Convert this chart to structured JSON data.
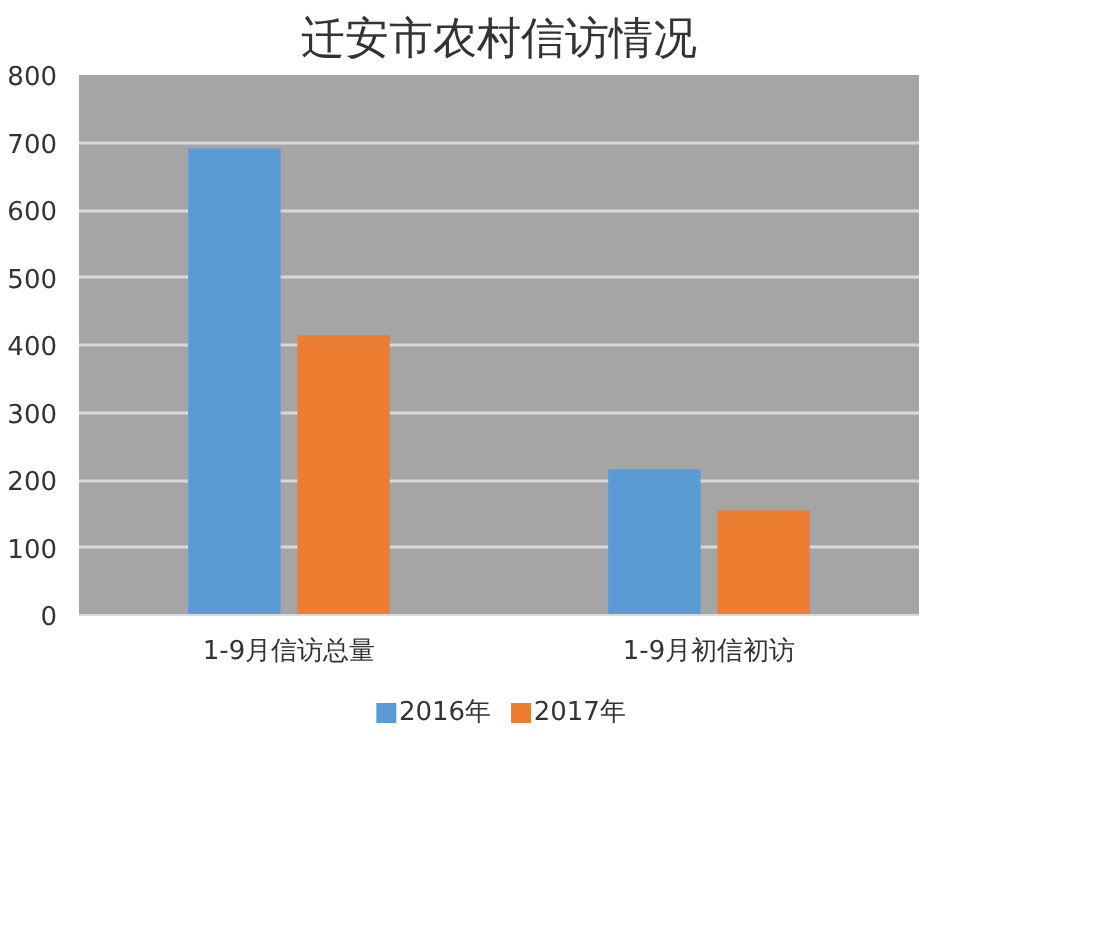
{
  "chart_data": {
    "type": "bar",
    "title": "迁安市农村信访情况",
    "categories": [
      "1-9月信访总量",
      "1-9月初信初访"
    ],
    "series": [
      {
        "name": "2016年",
        "color": "#5b9bd5",
        "values": [
          691,
          216
        ]
      },
      {
        "name": "2017年",
        "color": "#ed7d31",
        "values": [
          415,
          155
        ]
      }
    ],
    "ylim": [
      0,
      800
    ],
    "yticks": [
      0,
      100,
      200,
      300,
      400,
      500,
      600,
      700,
      800
    ],
    "grid": "y",
    "legend": "bottom"
  }
}
